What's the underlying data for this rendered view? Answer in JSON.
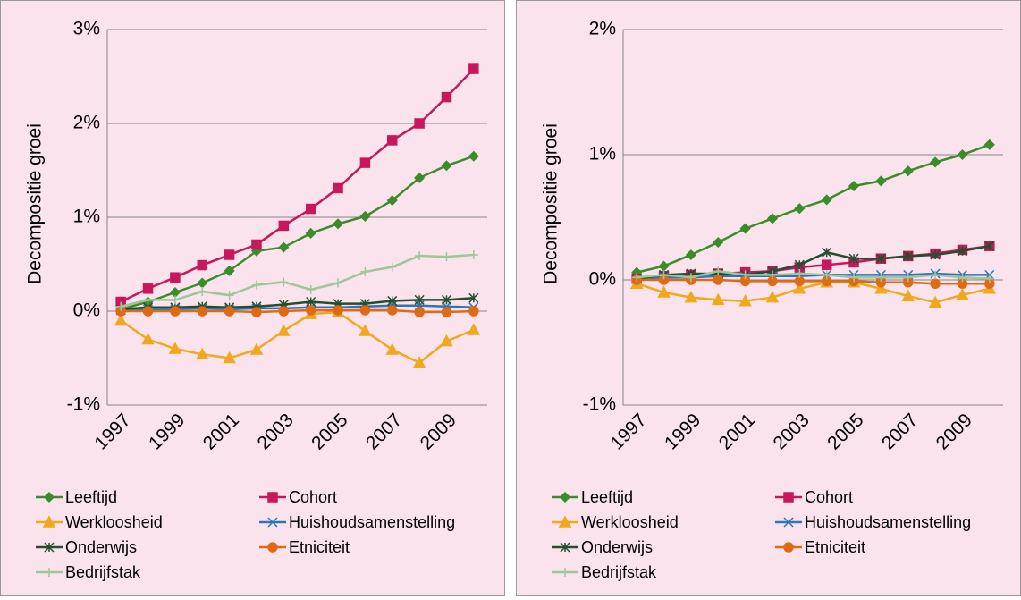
{
  "chart_data": [
    {
      "type": "line",
      "ylabel": "Decompositie groei",
      "categories": [
        "1997",
        null,
        "1999",
        null,
        "2001",
        null,
        "2003",
        null,
        "2005",
        null,
        "2007",
        null,
        "2009",
        null
      ],
      "ylim": [
        -1,
        3
      ],
      "yticks": [
        {
          "value": -1,
          "label": "-1%"
        },
        {
          "value": 0,
          "label": "0%"
        },
        {
          "value": 1,
          "label": "1%"
        },
        {
          "value": 2,
          "label": "2%"
        },
        {
          "value": 3,
          "label": "3%"
        }
      ],
      "grid": true,
      "series": [
        {
          "name": "Leeftijd",
          "color": "#3b8c2a",
          "marker": "diamond",
          "values": [
            0.02,
            0.1,
            0.2,
            0.3,
            0.43,
            0.64,
            0.68,
            0.83,
            0.93,
            1.01,
            1.18,
            1.42,
            1.55,
            1.65
          ]
        },
        {
          "name": "Cohort",
          "color": "#c8175c",
          "marker": "square",
          "values": [
            0.1,
            0.24,
            0.36,
            0.49,
            0.6,
            0.71,
            0.91,
            1.09,
            1.31,
            1.58,
            1.82,
            2.0,
            2.28,
            2.58
          ]
        },
        {
          "name": "Werkloosheid",
          "color": "#f0a81c",
          "marker": "triangle",
          "values": [
            -0.1,
            -0.3,
            -0.4,
            -0.46,
            -0.5,
            -0.41,
            -0.21,
            -0.03,
            -0.01,
            -0.21,
            -0.41,
            -0.55,
            -0.32,
            -0.2
          ]
        },
        {
          "name": "Huishoudsamenstelling",
          "color": "#2e75b6",
          "marker": "x",
          "values": [
            0.01,
            0.02,
            0.02,
            0.03,
            0.02,
            0.03,
            0.03,
            0.04,
            0.04,
            0.05,
            0.06,
            0.06,
            0.05,
            0.04
          ]
        },
        {
          "name": "Onderwijs",
          "color": "#244e30",
          "marker": "star",
          "values": [
            0.02,
            0.04,
            0.04,
            0.05,
            0.04,
            0.05,
            0.07,
            0.1,
            0.08,
            0.08,
            0.11,
            0.12,
            0.12,
            0.14
          ]
        },
        {
          "name": "Etniciteit",
          "color": "#e06a14",
          "marker": "circle",
          "values": [
            0,
            0,
            0,
            0,
            0,
            -0.01,
            0,
            0.01,
            0.01,
            0.01,
            0.01,
            -0.01,
            -0.01,
            0
          ]
        },
        {
          "name": "Bedrijfstak",
          "color": "#9cc69c",
          "marker": "plus",
          "values": [
            0.05,
            0.12,
            0.12,
            0.21,
            0.17,
            0.28,
            0.31,
            0.23,
            0.3,
            0.42,
            0.47,
            0.59,
            0.58,
            0.6
          ]
        }
      ]
    },
    {
      "type": "line",
      "ylabel": "Decompositie groei",
      "categories": [
        "1997",
        null,
        "1999",
        null,
        "2001",
        null,
        "2003",
        null,
        "2005",
        null,
        "2007",
        null,
        "2009",
        null
      ],
      "ylim": [
        -1,
        2
      ],
      "yticks": [
        {
          "value": -1,
          "label": "-1%"
        },
        {
          "value": 0,
          "label": "0%"
        },
        {
          "value": 1,
          "label": "1%"
        },
        {
          "value": 2,
          "label": "2%"
        }
      ],
      "grid": true,
      "series": [
        {
          "name": "Leeftijd",
          "color": "#3b8c2a",
          "marker": "diamond",
          "values": [
            0.06,
            0.11,
            0.2,
            0.3,
            0.41,
            0.49,
            0.57,
            0.64,
            0.75,
            0.79,
            0.87,
            0.94,
            1.0,
            1.08
          ]
        },
        {
          "name": "Cohort",
          "color": "#c8175c",
          "marker": "square",
          "values": [
            0.01,
            0.03,
            0.04,
            0.05,
            0.06,
            0.07,
            0.1,
            0.12,
            0.14,
            0.17,
            0.19,
            0.21,
            0.24,
            0.27
          ]
        },
        {
          "name": "Werkloosheid",
          "color": "#f0a81c",
          "marker": "triangle",
          "values": [
            -0.03,
            -0.1,
            -0.14,
            -0.16,
            -0.17,
            -0.14,
            -0.07,
            -0.02,
            -0.02,
            -0.07,
            -0.13,
            -0.18,
            -0.12,
            -0.07
          ]
        },
        {
          "name": "Huishoudsamenstelling",
          "color": "#2e75b6",
          "marker": "x",
          "values": [
            0.01,
            0.02,
            0.02,
            0.03,
            0.03,
            0.03,
            0.03,
            0.04,
            0.04,
            0.04,
            0.04,
            0.05,
            0.04,
            0.04
          ]
        },
        {
          "name": "Onderwijs",
          "color": "#244e30",
          "marker": "star",
          "values": [
            0.01,
            0.04,
            0.05,
            0.05,
            0.04,
            0.07,
            0.12,
            0.22,
            0.17,
            0.17,
            0.19,
            0.2,
            0.23,
            0.27
          ]
        },
        {
          "name": "Etniciteit",
          "color": "#e06a14",
          "marker": "circle",
          "values": [
            0,
            0,
            0,
            0,
            -0.01,
            -0.01,
            -0.01,
            -0.01,
            -0.01,
            -0.02,
            -0.02,
            -0.03,
            -0.03,
            -0.03
          ]
        },
        {
          "name": "Bedrijfstak",
          "color": "#9cc69c",
          "marker": "plus",
          "values": [
            0.02,
            0.04,
            0.02,
            0.07,
            0.04,
            0.04,
            0.05,
            0.04,
            0.02,
            0.02,
            0.02,
            0.04,
            0.02,
            0.01
          ]
        }
      ]
    }
  ]
}
